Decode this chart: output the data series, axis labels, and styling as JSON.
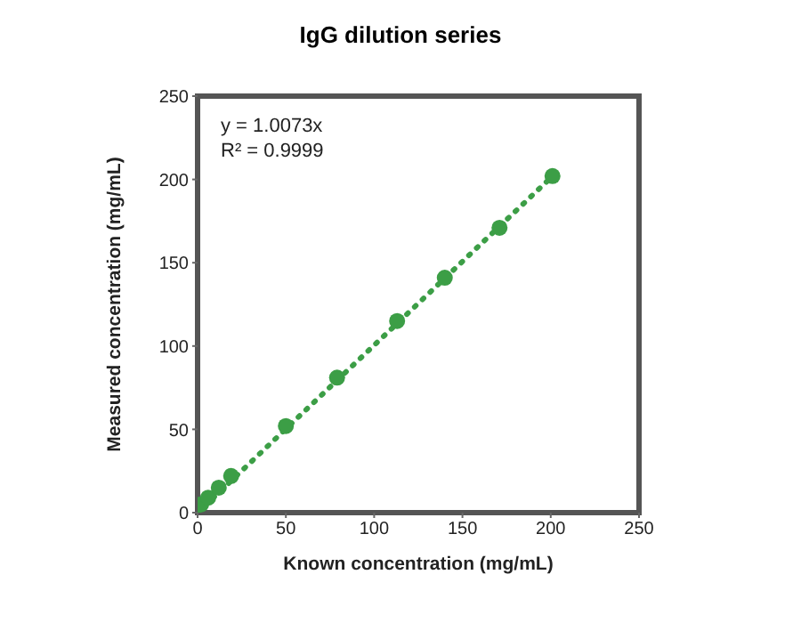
{
  "chart_data": {
    "type": "scatter",
    "title": "IgG dilution series",
    "xlabel": "Known concentration (mg/mL)",
    "ylabel": "Measured concentration (mg/mL)",
    "annotations": [
      "y = 1.0073x",
      "R² = 0.9999"
    ],
    "series": [
      {
        "type": "scatter",
        "color": "#3c9e46",
        "marker": "circle",
        "x": [
          2,
          6,
          12,
          19,
          50,
          79,
          113,
          140,
          171,
          201
        ],
        "values": [
          5,
          9,
          15,
          22,
          52,
          81,
          115,
          141,
          171,
          202
        ]
      },
      {
        "type": "line",
        "color": "#3c9e46",
        "line_style": "dotted",
        "marker": "none",
        "x": [
          0,
          205
        ],
        "values": [
          0,
          206
        ]
      }
    ],
    "xlim": [
      0,
      250
    ],
    "xticks": [
      0,
      50,
      100,
      150,
      200,
      250
    ],
    "ylim": [
      0,
      250
    ],
    "yticks": [
      0,
      50,
      100,
      150,
      200,
      250
    ]
  }
}
